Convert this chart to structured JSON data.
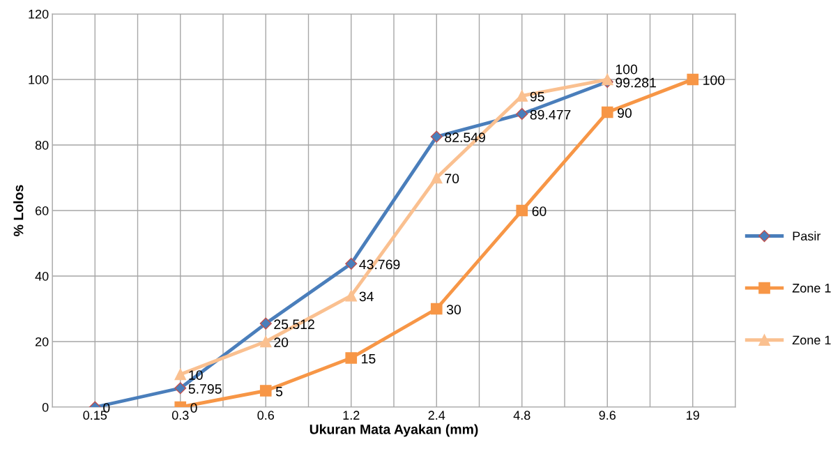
{
  "chart_data": {
    "type": "line",
    "xlabel": "Ukuran Mata Ayakan (mm)",
    "ylabel": "% Lolos",
    "categories": [
      "0.15",
      "0.3",
      "0.6",
      "1.2",
      "2.4",
      "4.8",
      "9.6",
      "19"
    ],
    "series": [
      {
        "name": "Pasir",
        "color": "#4a7ebb",
        "marker": "diamond",
        "values": [
          0,
          5.795,
          25.512,
          43.769,
          82.549,
          89.477,
          99.281,
          null
        ]
      },
      {
        "name": "Zone 1",
        "color": "#f79646",
        "marker": "square",
        "values": [
          null,
          0,
          5,
          15,
          30,
          60,
          90,
          100
        ]
      },
      {
        "name": "Zone 1",
        "color": "#fac090",
        "marker": "triangle",
        "values": [
          null,
          10,
          20,
          34,
          70,
          95,
          100,
          null
        ]
      }
    ],
    "ylim": [
      0,
      120
    ],
    "yticks": [
      0,
      20,
      40,
      60,
      80,
      100,
      120
    ],
    "grid": true,
    "legend": "right",
    "data_labels": true,
    "line_style": "solid"
  }
}
